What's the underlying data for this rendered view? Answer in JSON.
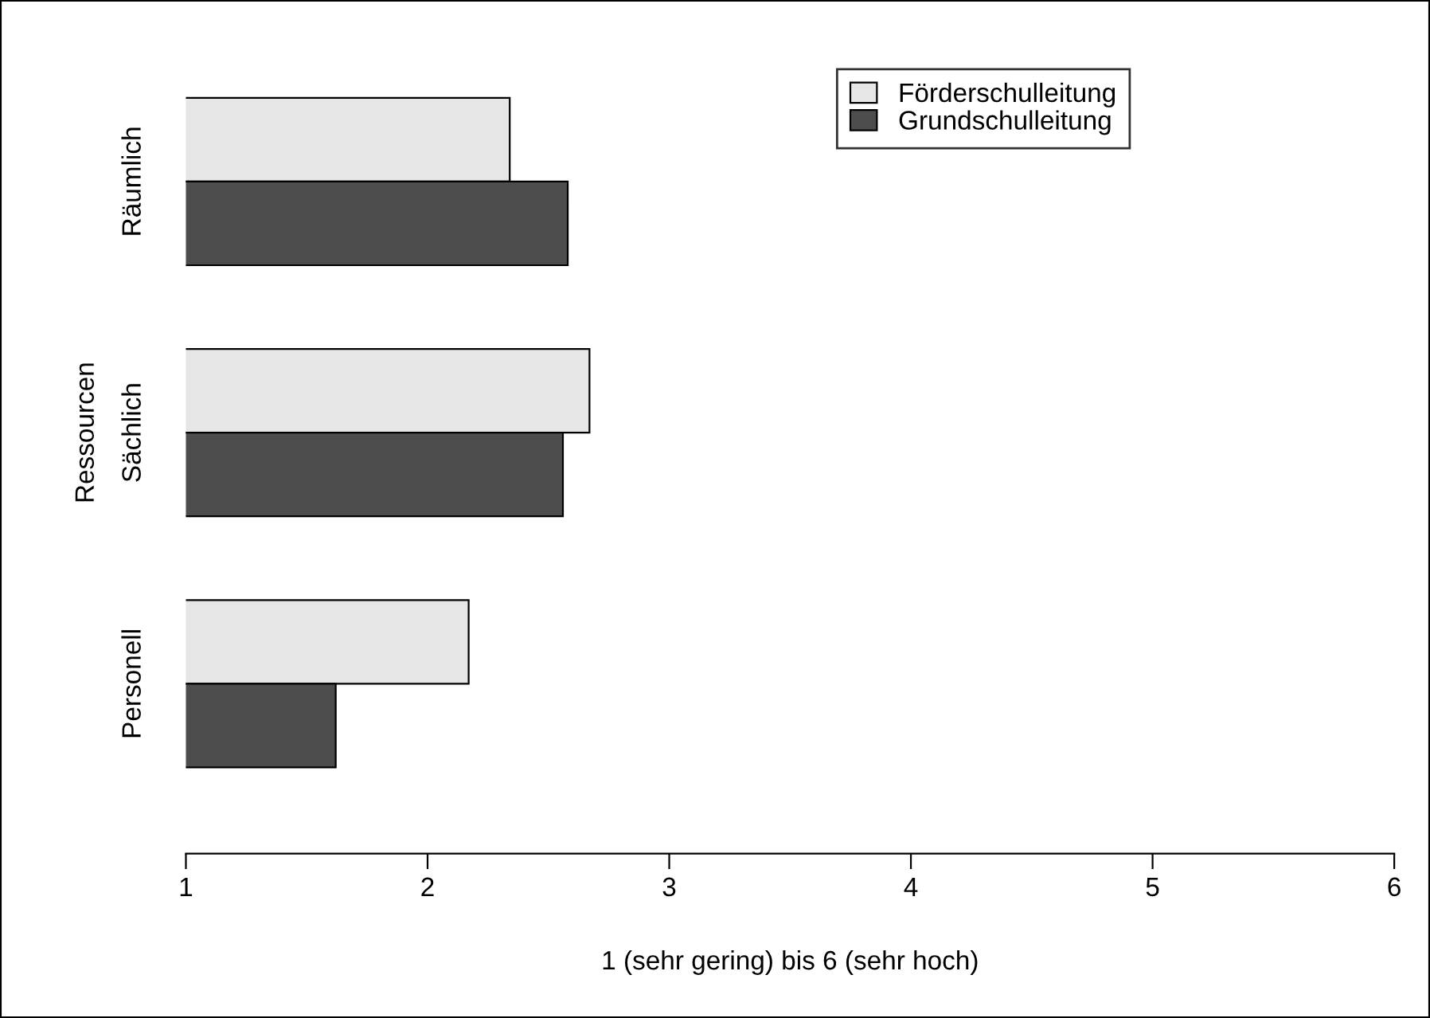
{
  "chart_data": {
    "type": "bar",
    "orientation": "horizontal",
    "xlabel": "1 (sehr gering) bis 6 (sehr hoch)",
    "ylabel": "Ressourcen",
    "categories": [
      "Räumlich",
      "Sächlich",
      "Personell"
    ],
    "series": [
      {
        "name": "Förderschulleitung",
        "color": "#e6e6e6",
        "values": [
          2.34,
          2.67,
          2.17
        ]
      },
      {
        "name": "Grundschulleitung",
        "color": "#4d4d4d",
        "values": [
          2.58,
          2.56,
          1.62
        ]
      }
    ],
    "xlim": [
      1,
      6
    ],
    "xticks": [
      1,
      2,
      3,
      4,
      5,
      6
    ],
    "grid": false,
    "legend": "top"
  }
}
